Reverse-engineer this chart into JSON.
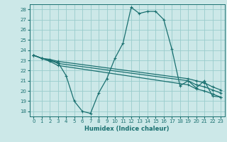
{
  "background_color": "#cce8e8",
  "grid_color": "#99cccc",
  "line_color": "#1a7070",
  "xlabel": "Humidex (Indice chaleur)",
  "xlim": [
    -0.5,
    23.5
  ],
  "ylim": [
    17.5,
    28.5
  ],
  "yticks": [
    18,
    19,
    20,
    21,
    22,
    23,
    24,
    25,
    26,
    27,
    28
  ],
  "xticks": [
    0,
    1,
    2,
    3,
    4,
    5,
    6,
    7,
    8,
    9,
    10,
    11,
    12,
    13,
    14,
    15,
    16,
    17,
    18,
    19,
    20,
    21,
    22,
    23
  ],
  "lines": [
    {
      "x": [
        0,
        1,
        2,
        3,
        4,
        5,
        6,
        7,
        8,
        9,
        10,
        11,
        12,
        13,
        14,
        15,
        16,
        17,
        18,
        19,
        20,
        21,
        22,
        23
      ],
      "y": [
        23.5,
        23.2,
        23.0,
        22.8,
        21.5,
        19.0,
        18.0,
        17.8,
        19.8,
        21.2,
        23.2,
        24.7,
        28.2,
        27.6,
        27.8,
        27.8,
        27.0,
        24.1,
        20.5,
        21.0,
        20.3,
        21.0,
        19.5,
        19.4
      ]
    },
    {
      "x": [
        0,
        1,
        2,
        3,
        19,
        20,
        21,
        22,
        23
      ],
      "y": [
        23.5,
        23.2,
        23.1,
        22.9,
        21.2,
        21.0,
        20.8,
        20.4,
        20.1
      ]
    },
    {
      "x": [
        0,
        1,
        2,
        3,
        19,
        20,
        21,
        22,
        23
      ],
      "y": [
        23.5,
        23.2,
        23.0,
        22.7,
        21.0,
        20.6,
        20.4,
        20.1,
        19.8
      ]
    },
    {
      "x": [
        0,
        1,
        2,
        3,
        19,
        20,
        21,
        22,
        23
      ],
      "y": [
        23.5,
        23.2,
        22.9,
        22.5,
        20.6,
        20.2,
        20.0,
        19.7,
        19.4
      ]
    }
  ]
}
